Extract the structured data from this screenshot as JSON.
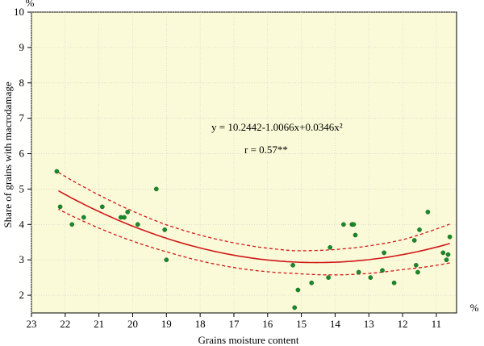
{
  "chart_data": {
    "type": "scatter",
    "xlabel": "Grains  moisture content",
    "ylabel": "Share of grains with macrodamage",
    "x_unit": "%",
    "y_unit": "%",
    "xlim": [
      23,
      10.4
    ],
    "ylim": [
      1.5,
      10
    ],
    "x_ticks": [
      23,
      22,
      21,
      20,
      19,
      18,
      17,
      16,
      15,
      14,
      13,
      12,
      11
    ],
    "y_ticks": [
      2,
      3,
      4,
      5,
      6,
      7,
      8,
      9,
      10
    ],
    "x_reversed": true,
    "grid": true,
    "annotations": [
      {
        "text": "y = 10.2442-1.0066x+0.0346x²"
      },
      {
        "text": "r = 0.57**"
      }
    ],
    "fit": {
      "type": "quadratic",
      "coefficients": [
        10.2442,
        -1.0066,
        0.0346
      ],
      "x_range": [
        10.6,
        22.2
      ]
    },
    "confidence_band": {
      "upper_offset": [
        0.52,
        0.38,
        0.32,
        0.42,
        0.55
      ],
      "x": [
        22.2,
        19,
        15.2,
        12,
        10.6
      ]
    },
    "series": [
      {
        "x": [
          22.25,
          22.15,
          21.8,
          21.45,
          20.9,
          20.35,
          20.25,
          20.15,
          19.85,
          19.3,
          19.05,
          19.0,
          15.25,
          15.2,
          15.1,
          14.7,
          14.2,
          14.15,
          13.75,
          13.5,
          13.45,
          13.4,
          13.3,
          12.95,
          12.6,
          12.55,
          12.25,
          11.65,
          11.6,
          11.55,
          11.5,
          11.25,
          10.8,
          10.7,
          10.65,
          10.6
        ],
        "values": [
          5.5,
          4.5,
          4.0,
          4.2,
          4.5,
          4.2,
          4.2,
          4.35,
          4.0,
          5.0,
          3.85,
          3.0,
          2.85,
          1.65,
          2.15,
          2.35,
          2.5,
          3.35,
          4.0,
          4.0,
          4.0,
          3.7,
          2.65,
          2.5,
          2.7,
          3.2,
          2.35,
          3.55,
          2.85,
          2.65,
          3.85,
          4.35,
          3.2,
          3.0,
          3.15,
          3.65
        ]
      }
    ]
  }
}
